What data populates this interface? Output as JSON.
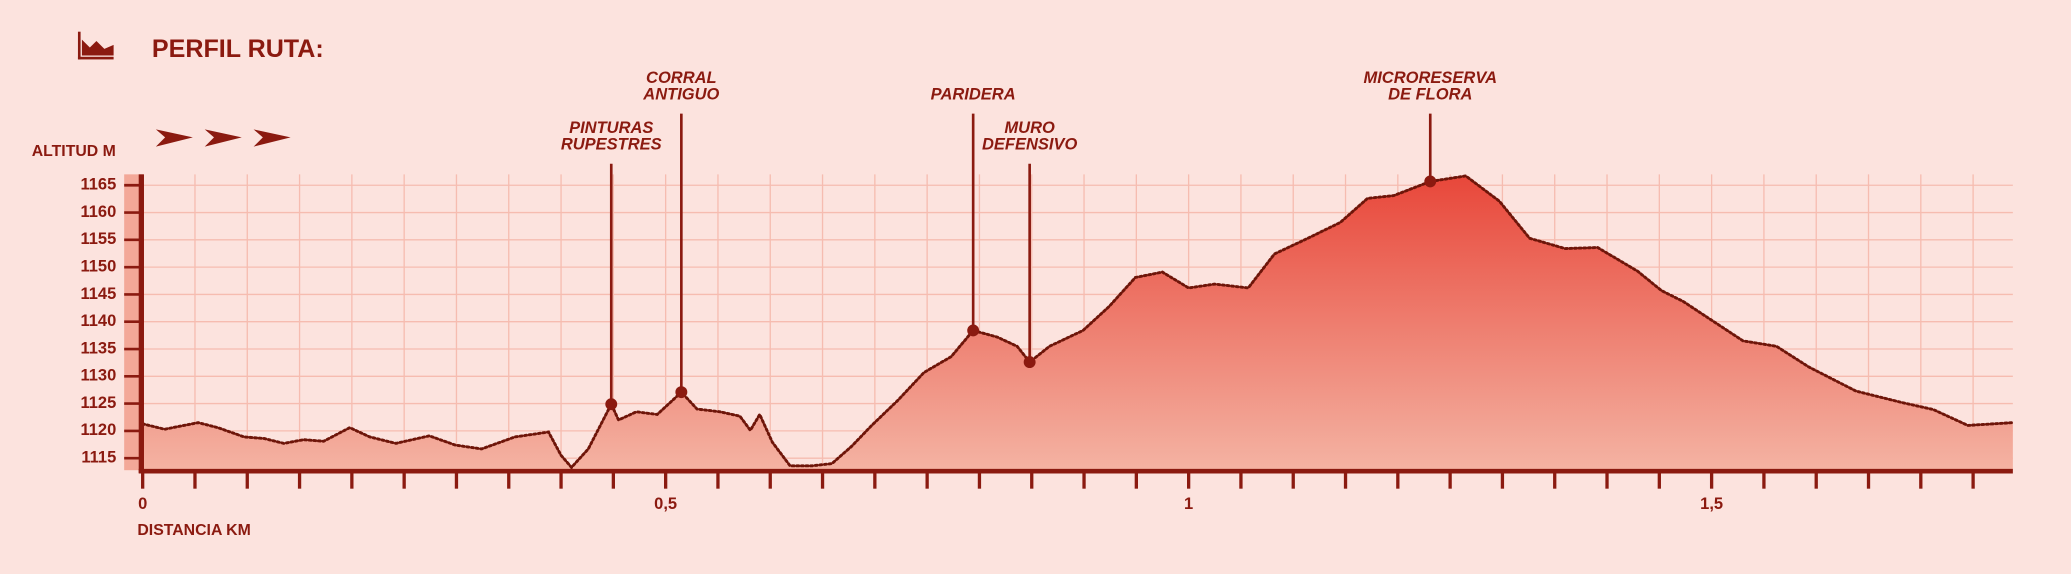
{
  "chart_data": {
    "type": "area",
    "title": "PERFIL RUTA:",
    "ylabel": "ALTITUD M",
    "xlabel": "DISTANCIA KM",
    "x": [
      0,
      0.021,
      0.053,
      0.072,
      0.097,
      0.116,
      0.135,
      0.154,
      0.173,
      0.198,
      0.217,
      0.242,
      0.274,
      0.299,
      0.324,
      0.356,
      0.388,
      0.4,
      0.41,
      0.426,
      0.448,
      0.455,
      0.472,
      0.492,
      0.515,
      0.53,
      0.552,
      0.571,
      0.581,
      0.59,
      0.602,
      0.619,
      0.64,
      0.659,
      0.678,
      0.697,
      0.722,
      0.747,
      0.773,
      0.794,
      0.817,
      0.836,
      0.848,
      0.867,
      0.899,
      0.924,
      0.949,
      0.975,
      1.0,
      1.025,
      1.057,
      1.082,
      1.114,
      1.145,
      1.171,
      1.196,
      1.231,
      1.265,
      1.297,
      1.326,
      1.36,
      1.391,
      1.429,
      1.452,
      1.473,
      1.499,
      1.53,
      1.562,
      1.593,
      1.638,
      1.682,
      1.712,
      1.745,
      1.788
    ],
    "values": [
      1121.3,
      1120.3,
      1121.5,
      1120.6,
      1118.9,
      1118.6,
      1117.7,
      1118.4,
      1118.1,
      1120.6,
      1118.9,
      1117.7,
      1119.1,
      1117.4,
      1116.7,
      1118.9,
      1119.8,
      1115.5,
      1113.3,
      1116.7,
      1124.9,
      1122.0,
      1123.5,
      1123.0,
      1127.1,
      1124.0,
      1123.5,
      1122.7,
      1120.1,
      1123.0,
      1117.9,
      1113.6,
      1113.6,
      1114.0,
      1117.2,
      1121.0,
      1125.6,
      1130.7,
      1133.6,
      1138.4,
      1137.2,
      1135.5,
      1132.6,
      1135.5,
      1138.4,
      1142.8,
      1148.1,
      1149.1,
      1146.2,
      1146.9,
      1146.2,
      1152.4,
      1155.3,
      1158.2,
      1162.6,
      1163.1,
      1165.7,
      1166.7,
      1162.1,
      1155.3,
      1153.4,
      1153.6,
      1149.3,
      1145.7,
      1143.7,
      1140.4,
      1136.5,
      1135.5,
      1131.7,
      1127.3,
      1125.2,
      1123.9,
      1121.0,
      1121.5
    ],
    "color": "#e8473a",
    "xlim": [
      0,
      1.788
    ],
    "ylim": [
      1112.8,
      1167
    ],
    "xticks": [
      0,
      {
        "value": 0.5,
        "label": "0,5"
      },
      1,
      {
        "value": 1.5,
        "label": "1,5"
      }
    ],
    "xticks_minor": [
      0.05,
      0.1,
      0.15,
      0.2,
      0.25,
      0.3,
      0.35,
      0.4,
      0.45,
      0.55,
      0.6,
      0.65,
      0.7,
      0.75,
      0.8,
      0.85,
      0.9,
      0.95,
      1.05,
      1.1,
      1.15,
      1.2,
      1.25,
      1.3,
      1.35,
      1.4,
      1.45,
      1.55,
      1.6,
      1.65,
      1.7,
      1.75
    ],
    "yticks": [
      1115,
      1120,
      1125,
      1130,
      1135,
      1140,
      1145,
      1150,
      1155,
      1160,
      1165
    ],
    "grid": true,
    "annotations": [
      {
        "lines": [
          "PINTURAS",
          "RUPESTRES"
        ],
        "x": 0.448,
        "y": 1124.9
      },
      {
        "lines": [
          "CORRAL",
          "ANTIGUO"
        ],
        "x": 0.515,
        "y": 1127.1
      },
      {
        "lines": [
          "PARIDERA"
        ],
        "x": 0.794,
        "y": 1138.4
      },
      {
        "lines": [
          "MURO",
          "DEFENSIVO"
        ],
        "x": 0.848,
        "y": 1132.6
      },
      {
        "lines": [
          "MICRORESERVA",
          "DE FLORA"
        ],
        "x": 1.231,
        "y": 1165.7
      }
    ]
  }
}
